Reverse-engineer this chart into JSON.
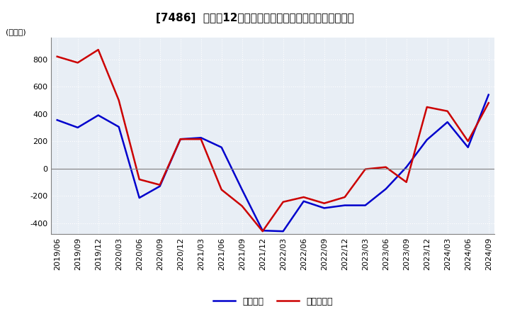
{
  "title": "[7486]  利益の12か月移動合計の対前年同期増減額の推移",
  "ylabel": "(百万円)",
  "ylim": [
    -480,
    960
  ],
  "yticks": [
    -400,
    -200,
    0,
    200,
    400,
    600,
    800
  ],
  "legend_labels": [
    "経常利益",
    "当期純利益"
  ],
  "line_colors": [
    "#0000cc",
    "#cc0000"
  ],
  "dates": [
    "2019/06",
    "2019/09",
    "2019/12",
    "2020/03",
    "2020/06",
    "2020/09",
    "2020/12",
    "2021/03",
    "2021/06",
    "2021/09",
    "2021/12",
    "2022/03",
    "2022/06",
    "2022/09",
    "2022/12",
    "2023/03",
    "2023/06",
    "2023/09",
    "2023/12",
    "2024/03",
    "2024/06",
    "2024/09"
  ],
  "operating_profit": [
    355,
    300,
    390,
    305,
    -215,
    -130,
    215,
    225,
    155,
    -155,
    -455,
    -460,
    -240,
    -290,
    -270,
    -270,
    -150,
    10,
    210,
    340,
    155,
    540
  ],
  "net_profit": [
    820,
    775,
    870,
    500,
    -80,
    -120,
    215,
    215,
    -155,
    -275,
    -460,
    -245,
    -210,
    -255,
    -210,
    -5,
    10,
    -100,
    450,
    420,
    200,
    480
  ],
  "plot_background": "#e8eef5",
  "figure_background": "#ffffff",
  "grid_color": "#ffffff",
  "zero_line_color": "#808080",
  "title_fontsize": 11,
  "axis_fontsize": 8,
  "legend_fontsize": 9,
  "line_width": 1.8
}
